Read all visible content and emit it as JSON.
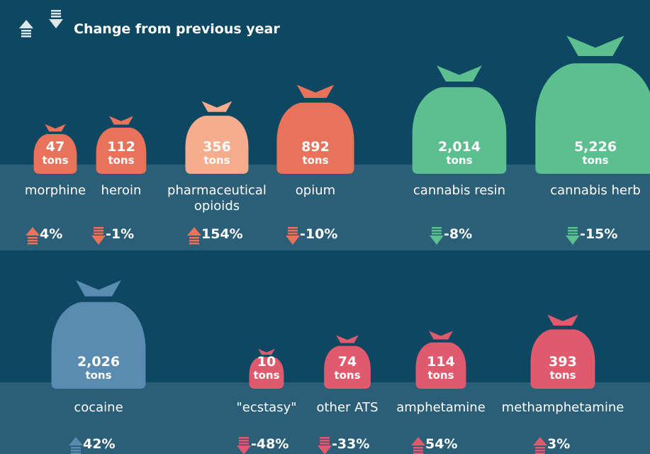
{
  "header": {
    "title": "Change from previous year"
  },
  "items": [
    {
      "name": "morphine",
      "value": 47,
      "value_label": "47",
      "unit": "tons",
      "change": 4,
      "change_label": "4%",
      "color": "#e8735a",
      "arrow_color": "#e8735a"
    },
    {
      "name": "heroin",
      "value": 112,
      "value_label": "112",
      "unit": "tons",
      "change": -1,
      "change_label": "-1%",
      "color": "#e8735a",
      "arrow_color": "#e8735a"
    },
    {
      "name": "pharmaceutical opioids",
      "value": 356,
      "value_label": "356",
      "unit": "tons",
      "change": 154,
      "change_label": "154%",
      "color": "#f6ad8e",
      "arrow_color": "#e8735a"
    },
    {
      "name": "opium",
      "value": 892,
      "value_label": "892",
      "unit": "tons",
      "change": -10,
      "change_label": "-10%",
      "color": "#e8735a",
      "arrow_color": "#e8735a"
    },
    {
      "name": "cannabis resin",
      "value": 2014,
      "value_label": "2,014",
      "unit": "tons",
      "change": -8,
      "change_label": "-8%",
      "color": "#5cbf8f",
      "arrow_color": "#5cbf8f"
    },
    {
      "name": "cannabis herb",
      "value": 5226,
      "value_label": "5,226",
      "unit": "tons",
      "change": -15,
      "change_label": "-15%",
      "color": "#5cbf8f",
      "arrow_color": "#5cbf8f"
    },
    {
      "name": "cocaine",
      "value": 2026,
      "value_label": "2,026",
      "unit": "tons",
      "change": 42,
      "change_label": "42%",
      "color": "#5a8bb0",
      "arrow_color": "#5a8bb0"
    },
    {
      "name": "\"ecstasy\"",
      "value": 10,
      "value_label": "10",
      "unit": "tons",
      "change": -48,
      "change_label": "-48%",
      "color": "#e05a6e",
      "arrow_color": "#e05a6e"
    },
    {
      "name": "other ATS",
      "value": 74,
      "value_label": "74",
      "unit": "tons",
      "change": -33,
      "change_label": "-33%",
      "color": "#e05a6e",
      "arrow_color": "#e05a6e"
    },
    {
      "name": "amphetamine",
      "value": 114,
      "value_label": "114",
      "unit": "tons",
      "change": 54,
      "change_label": "54%",
      "color": "#e05a6e",
      "arrow_color": "#e05a6e"
    },
    {
      "name": "methamphetamine",
      "value": 393,
      "value_label": "393",
      "unit": "tons",
      "change": 3,
      "change_label": "3%",
      "color": "#e05a6e",
      "arrow_color": "#e05a6e"
    }
  ]
}
